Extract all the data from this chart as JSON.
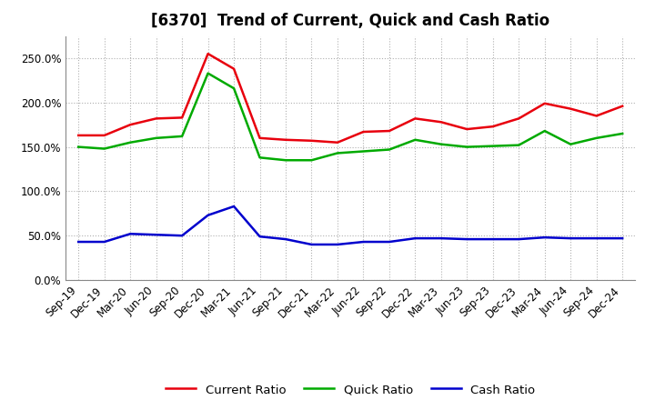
{
  "title": "[6370]  Trend of Current, Quick and Cash Ratio",
  "x_labels": [
    "Sep-19",
    "Dec-19",
    "Mar-20",
    "Jun-20",
    "Sep-20",
    "Dec-20",
    "Mar-21",
    "Jun-21",
    "Sep-21",
    "Dec-21",
    "Mar-22",
    "Jun-22",
    "Sep-22",
    "Dec-22",
    "Mar-23",
    "Jun-23",
    "Sep-23",
    "Dec-23",
    "Mar-24",
    "Jun-24",
    "Sep-24",
    "Dec-24"
  ],
  "current_ratio": [
    163,
    163,
    175,
    182,
    183,
    255,
    238,
    160,
    158,
    157,
    155,
    167,
    168,
    182,
    178,
    170,
    173,
    182,
    199,
    193,
    185,
    196
  ],
  "quick_ratio": [
    150,
    148,
    155,
    160,
    162,
    233,
    216,
    138,
    135,
    135,
    143,
    145,
    147,
    158,
    153,
    150,
    151,
    152,
    168,
    153,
    160,
    165
  ],
  "cash_ratio": [
    43,
    43,
    52,
    51,
    50,
    73,
    83,
    49,
    46,
    40,
    40,
    43,
    43,
    47,
    47,
    46,
    46,
    46,
    48,
    47,
    47,
    47
  ],
  "current_color": "#e8000d",
  "quick_color": "#00aa00",
  "cash_color": "#0000cd",
  "ylim": [
    0,
    275
  ],
  "yticks": [
    0,
    50,
    100,
    150,
    200,
    250
  ],
  "background_color": "#ffffff",
  "plot_background": "#ffffff",
  "grid_color": "#b0b0b0",
  "title_fontsize": 12,
  "tick_fontsize": 8.5,
  "legend_labels": [
    "Current Ratio",
    "Quick Ratio",
    "Cash Ratio"
  ],
  "line_width": 1.8
}
